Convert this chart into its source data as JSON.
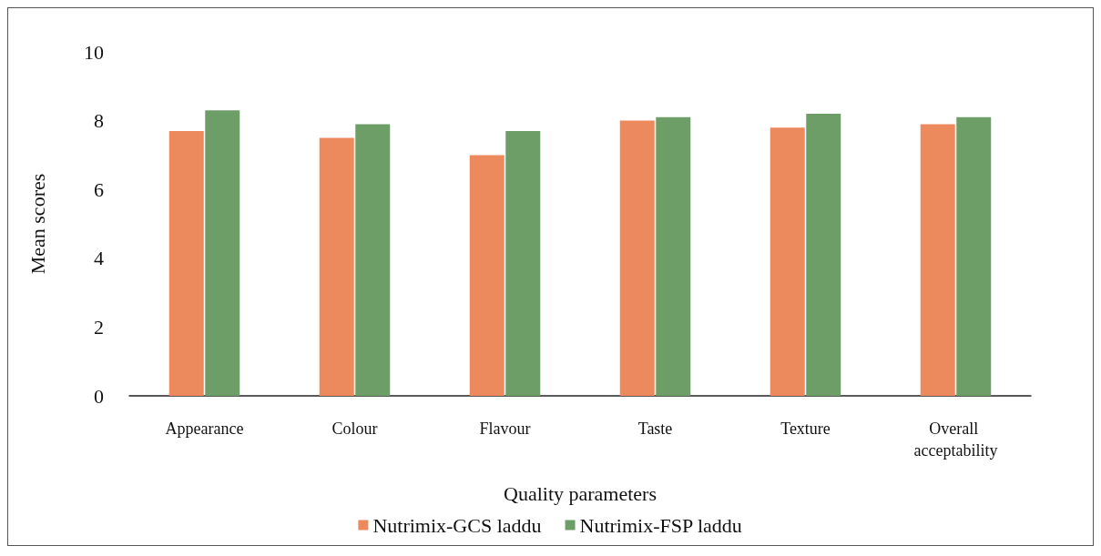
{
  "chart_data": {
    "type": "bar",
    "xlabel": "Quality parameters",
    "ylabel": "Mean scores",
    "categories": [
      "Appearance",
      "Colour",
      "Flavour",
      "Taste",
      "Texture",
      "Overall acceptability"
    ],
    "series": [
      {
        "name": "Nutrimix-GCS laddu",
        "color": "#ec8a5e",
        "values": [
          7.7,
          7.5,
          7.0,
          8.0,
          7.8,
          7.9
        ]
      },
      {
        "name": "Nutrimix-FSP laddu",
        "color": "#6e9e68",
        "values": [
          8.3,
          7.9,
          7.7,
          8.1,
          8.2,
          8.1
        ]
      }
    ],
    "ylim": [
      0,
      10
    ],
    "yticks": [
      0,
      2,
      4,
      6,
      8,
      10
    ],
    "legend": "bottom"
  }
}
